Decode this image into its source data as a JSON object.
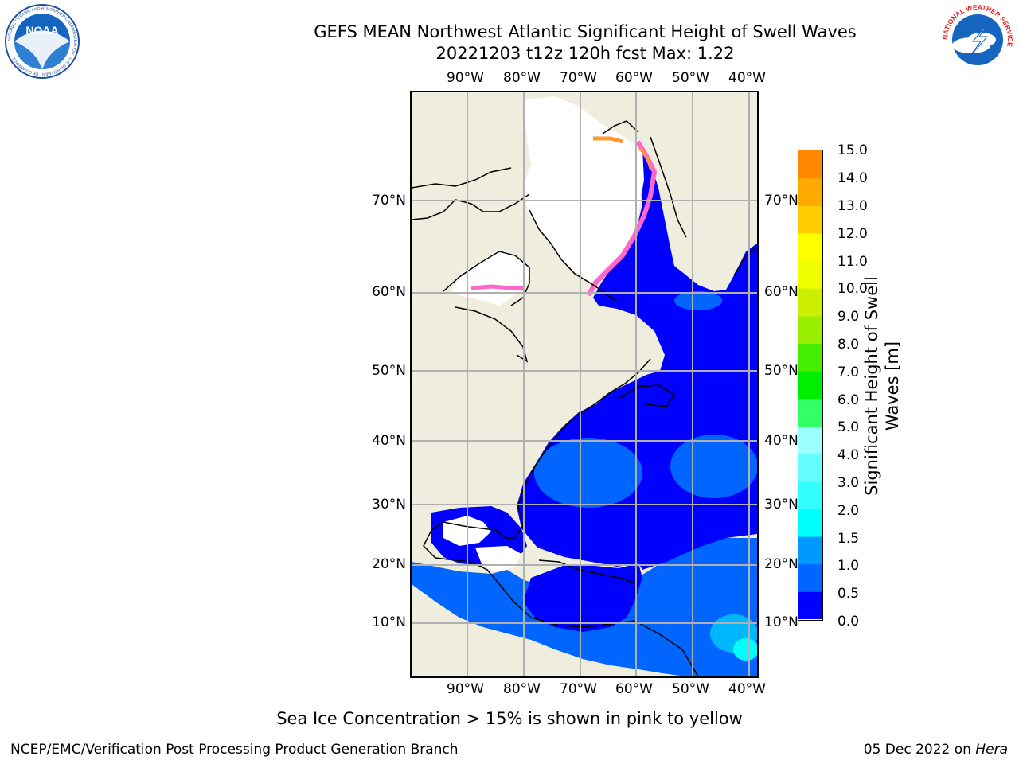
{
  "header": {
    "title_line1": "GEFS MEAN Northwest Atlantic Significant Height of Swell Waves",
    "title_line2": "20221203 t12z 120h fcst   Max: 1.22"
  },
  "logos": {
    "noaa_text": "NOAA",
    "noaa_ring": "NATIONAL OCEANIC AND ATMOSPHERIC ADMINISTRATION · U.S. DEPARTMENT OF COMMERCE",
    "nws_ring": "NATIONAL WEATHER SERVICE"
  },
  "map": {
    "lon_labels": [
      "90°W",
      "80°W",
      "70°W",
      "60°W",
      "50°W",
      "40°W"
    ],
    "lat_labels": [
      "70°N",
      "60°N",
      "50°N",
      "40°N",
      "30°N",
      "20°N",
      "10°N"
    ],
    "colors": {
      "land": "#efedde",
      "ice_region": "#ffffff",
      "grid": "#b0b0b0",
      "coast": "#000000",
      "ice_pink": "#ff66cc",
      "ice_orange": "#ff9933"
    }
  },
  "colorbar": {
    "title": "Significant Height of Swell Waves [m]",
    "tick_labels": [
      "15.0",
      "14.0",
      "13.0",
      "12.0",
      "11.0",
      "10.0",
      "9.0",
      "8.0",
      "7.0",
      "6.0",
      "5.0",
      "4.0",
      "3.0",
      "2.0",
      "1.5",
      "1.0",
      "0.5",
      "0.0"
    ],
    "bin_colors_bottom_to_top": [
      "#0000ff",
      "#0066ff",
      "#0099ff",
      "#00ffff",
      "#33ffff",
      "#66ffff",
      "#99ffff",
      "#33ff66",
      "#00ee00",
      "#44ee00",
      "#99ee00",
      "#ccee00",
      "#eeff00",
      "#ffff00",
      "#ffcc00",
      "#ffaa00",
      "#ff8800",
      "#ff6600",
      "#ff3300",
      "#ff0000"
    ]
  },
  "footer": {
    "caption": "Sea Ice Concentration > 15% is shown in pink to yellow",
    "left": "NCEP/EMC/Verification Post Processing Product Generation Branch",
    "date": "05 Dec 2022 on",
    "machine": "Hera"
  }
}
